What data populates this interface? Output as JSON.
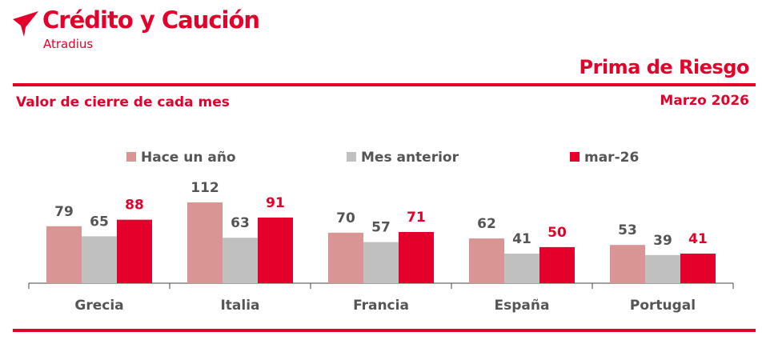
{
  "brand": {
    "name": "Crédito y Caución",
    "sub": "Atradius"
  },
  "report": {
    "title": "Prima de Riesgo",
    "subtitle": "Valor de cierre de cada mes",
    "date": "Marzo 2026"
  },
  "colors": {
    "accent": "#e4002b",
    "hace_un_ano": "#d99594",
    "mes_anterior": "#c0c0c0",
    "actual": "#e4002b",
    "text_gray": "#555555"
  },
  "chart_data": {
    "type": "bar",
    "categories": [
      "Grecia",
      "Italia",
      "Francia",
      "España",
      "Portugal"
    ],
    "series": [
      {
        "name": "Hace un año",
        "values": [
          79,
          112,
          70,
          62,
          53
        ]
      },
      {
        "name": "Mes anterior",
        "values": [
          65,
          63,
          57,
          41,
          39
        ]
      },
      {
        "name": "mar-26",
        "values": [
          88,
          91,
          71,
          50,
          41
        ]
      }
    ],
    "title": "Prima de Riesgo",
    "xlabel": "",
    "ylabel": "",
    "ylim": [
      0,
      112
    ],
    "legend": "top"
  }
}
